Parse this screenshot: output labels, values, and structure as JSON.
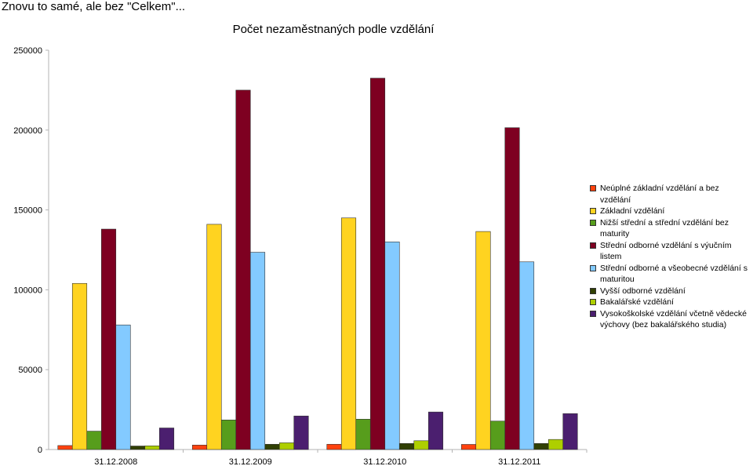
{
  "window": {
    "title": "Znovu to samé, ale bez \"Celkem\"..."
  },
  "chart_data": {
    "type": "bar",
    "title": "Počet nezaměstnaných podle vzdělání",
    "xlabel": "",
    "ylabel": "",
    "ylim": [
      0,
      250000
    ],
    "yticks": [
      "0",
      "50000",
      "100000",
      "150000",
      "200000",
      "250000"
    ],
    "grid": false,
    "legend_position": "right",
    "categories": [
      "31.12.2008",
      "31.12.2009",
      "31.12.2010",
      "31.12.2011"
    ],
    "series": [
      {
        "name": "Neúplné základní vzdělání a bez vzdělání",
        "color": "#ff420e",
        "values": [
          2500,
          2800,
          3300,
          3200
        ]
      },
      {
        "name": "Základní vzdělání",
        "color": "#ffd320",
        "values": [
          104000,
          141000,
          145000,
          136500
        ]
      },
      {
        "name": "Nižší střední a střední vzdělání bez maturity",
        "color": "#579d1c",
        "values": [
          11500,
          18500,
          19000,
          17800
        ]
      },
      {
        "name": "Střední odborné vzdělání s výučním listem",
        "color": "#7e0021",
        "values": [
          138000,
          225000,
          232500,
          201500
        ]
      },
      {
        "name": "Střední odborné a všeobecné vzdělání s maturitou",
        "color": "#83caff",
        "values": [
          78000,
          123500,
          130000,
          117500
        ]
      },
      {
        "name": "Vyšší odborné vzdělání",
        "color": "#314004",
        "values": [
          2200,
          3300,
          3800,
          3800
        ]
      },
      {
        "name": "Bakalářské vzdělání",
        "color": "#aecf00",
        "values": [
          2300,
          4200,
          5500,
          6300
        ]
      },
      {
        "name": "Vysokoškolské vzdělání včetně vědecké výchovy (bez bakalářského studia)",
        "color": "#4b1f6f",
        "values": [
          13500,
          21000,
          23500,
          22500
        ]
      }
    ]
  }
}
